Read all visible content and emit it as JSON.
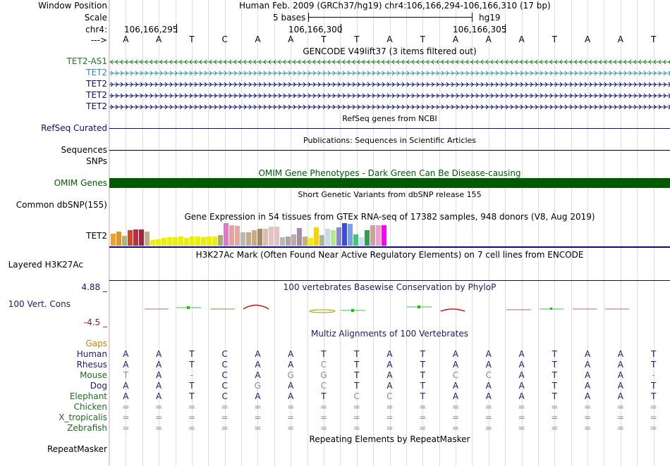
{
  "header": {
    "window_position_label": "Window Position",
    "scale_label": "Scale",
    "chrom_label": "chr4:",
    "strand_label": "--->",
    "assembly_text": "Human Feb. 2009 (GRCh37/hg19)   chr4:106,166,294-106,166,310 (17 bp)",
    "scale_text": "5 bases",
    "scale_db": "hg19",
    "coord_1": "106,166,295",
    "coord_2": "106,166,300",
    "coord_3": "106,166,305"
  },
  "bases": [
    "A",
    "A",
    "T",
    "C",
    "A",
    "A",
    "T",
    "T",
    "A",
    "T",
    "A",
    "A",
    "A",
    "T",
    "A",
    "A",
    "T"
  ],
  "tracks": {
    "gencode_title": "GENCODE V49lift37 (3 items filtered out)",
    "gencode_rows": [
      {
        "label": "TET2-AS1",
        "color": "#1e7d1e",
        "direction": "left"
      },
      {
        "label": "TET2",
        "color": "#2c8fb0",
        "direction": "right"
      },
      {
        "label": "TET2",
        "color": "#0c0c78",
        "direction": "right"
      },
      {
        "label": "TET2",
        "color": "#0c0c78",
        "direction": "right"
      },
      {
        "label": "TET2",
        "color": "#0c0c78",
        "direction": "right"
      }
    ],
    "refseq_title": "RefSeq genes from NCBI",
    "refseq_label": "RefSeq Curated",
    "publications_title": "Publications: Sequences in Scientific Articles",
    "sequences_label": "Sequences",
    "snps_label": "SNPs",
    "omim_title": "OMIM Gene Phenotypes - Dark Green Can Be Disease-causing",
    "omim_label": "OMIM Genes",
    "dbsnp_title": "Short Genetic Variants from dbSNP release 155",
    "dbsnp_label": "Common dbSNP(155)",
    "gtex_title": "Gene Expression in 54 tissues from GTEx RNA-seq of 17382 samples, 948 donors (V8, Aug 2019)",
    "gtex_label": "TET2",
    "h3k27ac_title": "H3K27Ac Mark (Often Found Near Active Regulatory Elements) on 7 cell lines from ENCODE",
    "h3k27ac_label": "Layered H3K27Ac",
    "phylop_title": "100 vertebrates Basewise Conservation by PhyloP",
    "phylop_label": "100 Vert. Cons",
    "phylop_max": "4.88 _",
    "phylop_min": "-4.5 _",
    "multiz_title": "Multiz Alignments of 100 Vertebrates",
    "repeatmasker_title": "Repeating Elements by RepeatMasker",
    "repeatmasker_label": "RepeatMasker"
  },
  "gtex_bars": [
    {
      "v": 0.52,
      "c": "#f0a030"
    },
    {
      "v": 0.62,
      "c": "#e8941e"
    },
    {
      "v": 0.45,
      "c": "#a8b878"
    },
    {
      "v": 0.68,
      "c": "#d0482c"
    },
    {
      "v": 0.71,
      "c": "#c8283c"
    },
    {
      "v": 0.71,
      "c": "#9c2840"
    },
    {
      "v": 0.62,
      "c": "#c8aa88"
    },
    {
      "v": 0.26,
      "c": "#eeee00"
    },
    {
      "v": 0.28,
      "c": "#eeee00"
    },
    {
      "v": 0.33,
      "c": "#eeee00"
    },
    {
      "v": 0.36,
      "c": "#eeee00"
    },
    {
      "v": 0.38,
      "c": "#eeee00"
    },
    {
      "v": 0.4,
      "c": "#eeee00"
    },
    {
      "v": 0.33,
      "c": "#eeee00"
    },
    {
      "v": 0.4,
      "c": "#eeee00"
    },
    {
      "v": 0.4,
      "c": "#eeee00"
    },
    {
      "v": 0.38,
      "c": "#eeee00"
    },
    {
      "v": 0.4,
      "c": "#eeee00"
    },
    {
      "v": 0.4,
      "c": "#eeee00"
    },
    {
      "v": 0.48,
      "c": "#a8a878"
    },
    {
      "v": 1.0,
      "c": "#e078c8"
    },
    {
      "v": 0.9,
      "c": "#e8a0a0"
    },
    {
      "v": 0.88,
      "c": "#e8a8a0"
    },
    {
      "v": 0.58,
      "c": "#b8b8b8"
    },
    {
      "v": 0.6,
      "c": "#c8aa88"
    },
    {
      "v": 0.68,
      "c": "#c8aa88"
    },
    {
      "v": 0.74,
      "c": "#aa8866"
    },
    {
      "v": 0.76,
      "c": "#d8c0a8"
    },
    {
      "v": 0.84,
      "c": "#e8c0c0"
    },
    {
      "v": 0.84,
      "c": "#e8c0c0"
    },
    {
      "v": 0.38,
      "c": "#b8b8b8"
    },
    {
      "v": 0.4,
      "c": "#a8a8a8"
    },
    {
      "v": 0.5,
      "c": "#c0a8a8"
    },
    {
      "v": 0.78,
      "c": "#aa88aa"
    },
    {
      "v": 0.42,
      "c": "#c8b078"
    },
    {
      "v": 0.35,
      "c": "#eeee00"
    },
    {
      "v": 0.82,
      "c": "#ffd000"
    },
    {
      "v": 0.48,
      "c": "#a8b898"
    },
    {
      "v": 0.76,
      "c": "#c8d8f0"
    },
    {
      "v": 0.68,
      "c": "#aaee88"
    },
    {
      "v": 0.8,
      "c": "#8888cc"
    },
    {
      "v": 1.0,
      "c": "#3c48e8"
    },
    {
      "v": 0.96,
      "c": "#78a0e8"
    },
    {
      "v": 0.5,
      "c": "#3cc878"
    },
    {
      "v": 0.38,
      "c": "#c8e0f8"
    },
    {
      "v": 0.68,
      "c": "#30a050"
    },
    {
      "v": 0.9,
      "c": "#d0a0a0"
    },
    {
      "v": 0.9,
      "c": "#f0a0c8"
    },
    {
      "v": 0.92,
      "c": "#ff00ff"
    }
  ],
  "multiz": {
    "gaps_label": "Gaps",
    "species": [
      {
        "name": "Human",
        "color": "#1a1a6e",
        "bases": [
          "A",
          "A",
          "T",
          "C",
          "A",
          "A",
          "T",
          "T",
          "A",
          "T",
          "A",
          "A",
          "A",
          "T",
          "A",
          "A",
          "T"
        ]
      },
      {
        "name": "Rhesus",
        "color": "#1a1a6e",
        "bases": [
          "A",
          "A",
          "T",
          "C",
          "A",
          "A",
          "C",
          "T",
          "A",
          "T",
          "A",
          "A",
          "A",
          "T",
          "A",
          "A",
          "T"
        ]
      },
      {
        "name": "Mouse",
        "color": "#1e6e1e",
        "bases": [
          "T",
          "A",
          "-",
          "C",
          "A",
          "G",
          "G",
          "T",
          "A",
          "T",
          "C",
          "C",
          "A",
          "T",
          "A",
          "A",
          "-"
        ]
      },
      {
        "name": "Dog",
        "color": "#1a1a6e",
        "bases": [
          "A",
          "A",
          "T",
          "C",
          "G",
          "A",
          "C",
          "T",
          "A",
          "T",
          "A",
          "A",
          "A",
          "T",
          "A",
          "A",
          "T"
        ]
      },
      {
        "name": "Elephant",
        "color": "#1e6e1e",
        "bases": [
          "A",
          "A",
          "T",
          "C",
          "A",
          "A",
          "T",
          "C",
          "C",
          "T",
          "A",
          "A",
          "A",
          "T",
          "A",
          "A",
          "T"
        ]
      },
      {
        "name": "Chicken",
        "color": "#1e6e1e",
        "bases": [
          "=",
          "=",
          "=",
          "=",
          "=",
          "=",
          "=",
          "=",
          "=",
          "=",
          "=",
          "=",
          "=",
          "=",
          "=",
          "=",
          "="
        ]
      },
      {
        "name": "X_tropicalis",
        "color": "#1e6e1e",
        "bases": [
          "=",
          "=",
          "=",
          "=",
          "=",
          "=",
          "=",
          "=",
          "=",
          "=",
          "=",
          "=",
          "=",
          "=",
          "=",
          "=",
          "="
        ]
      },
      {
        "name": "Zebrafish",
        "color": "#1e6e1e",
        "bases": [
          "=",
          "=",
          "=",
          "=",
          "=",
          "=",
          "=",
          "=",
          "=",
          "=",
          "=",
          "=",
          "=",
          "=",
          "=",
          "=",
          "="
        ]
      }
    ],
    "mismatch_color": "#8a8a9a"
  }
}
